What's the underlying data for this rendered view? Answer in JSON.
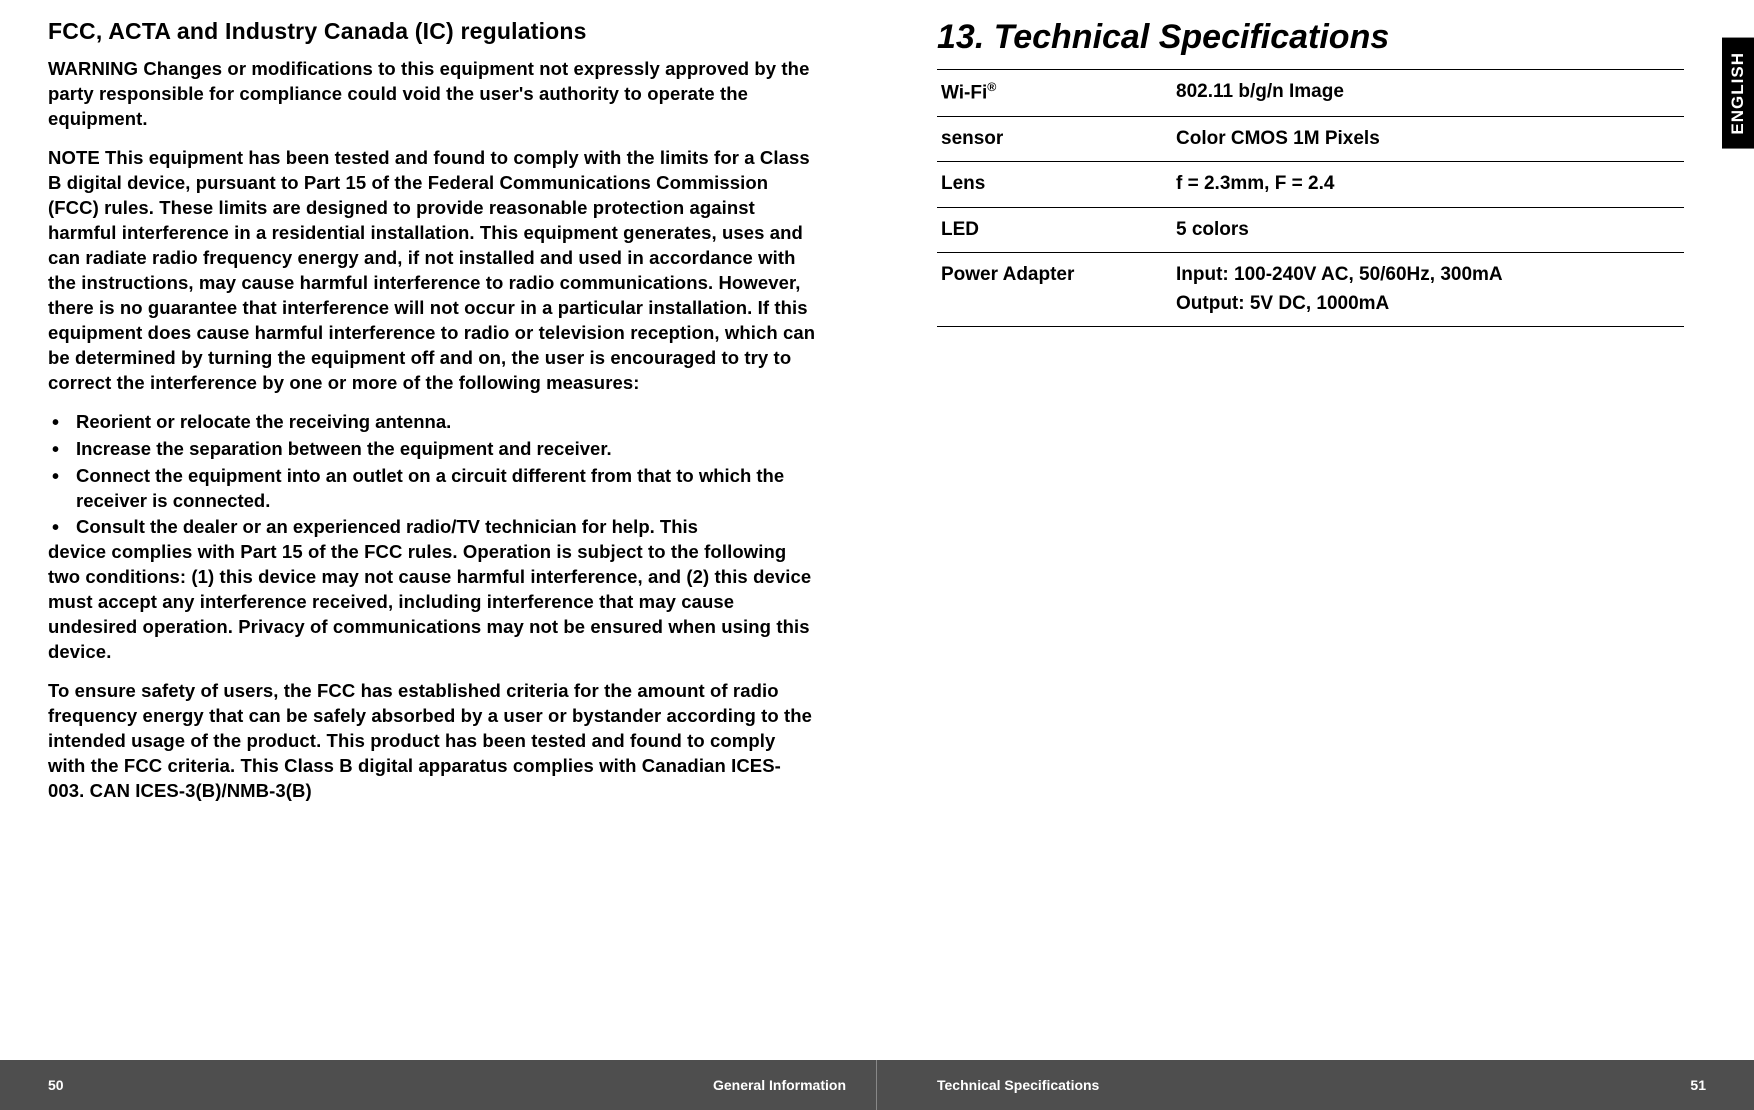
{
  "leftPage": {
    "heading": "FCC, ACTA and Industry Canada (IC) regulations",
    "para1": "WARNING Changes or modifications to this equipment not expressly approved by the party responsible for compliance could void the user's authority to operate the equipment.",
    "para2": "NOTE This equipment has been tested and found to comply with the limits for a Class B digital device, pursuant to Part 15 of the Federal Communications Commission (FCC) rules. These limits are designed to provide reasonable protection against harmful interference in a residential installation. This equipment generates, uses and can radiate radio frequency energy and, if not installed and used in accordance with the instructions, may cause harmful interference to radio communications. However, there is no guarantee that interference will not occur in a particular installation. If this equipment does cause harmful interference to radio or television reception, which can be determined by turning the equipment off and on, the user is encouraged to try to correct the interference by one or more of the following measures:",
    "bullets": [
      "Reorient or relocate the receiving antenna.",
      "Increase the separation between the equipment and receiver.",
      "Connect the equipment into an outlet on a circuit different from that to which the receiver is connected.",
      "Consult the dealer or an experienced radio/TV technician for help. This"
    ],
    "para3": "device complies with Part 15 of the FCC rules. Operation is subject to the following two conditions: (1) this device may not cause harmful interference, and (2) this device must accept any interference received, including interference that may cause undesired operation. Privacy of communications may not be ensured when using this device.",
    "para4": "To ensure safety of users, the FCC has established criteria for the amount of radio frequency energy that can be safely absorbed by a user or bystander according to the intended usage of the product. This product has been tested and found to comply with the FCC criteria. This Class B digital apparatus complies with Canadian ICES-003. CAN ICES-3(B)/NMB-3(B)"
  },
  "rightPage": {
    "sectionTitle": "13. Technical Specifications",
    "specs": [
      {
        "label": "Wi-Fi®",
        "value": "802.11 b/g/n Image"
      },
      {
        "label": "sensor",
        "value": "Color CMOS 1M Pixels"
      },
      {
        "label": "Lens",
        "value": "f = 2.3mm,  F = 2.4"
      },
      {
        "label": "LED",
        "value": "5 colors"
      },
      {
        "label": "Power Adapter",
        "value": "Input: 100-240V AC, 50/60Hz, 300mA\nOutput: 5V DC, 1000mA"
      }
    ],
    "sideTab": "ENGLISH"
  },
  "footer": {
    "leftNum": "50",
    "leftTitle": "General Information",
    "rightTitle": "Technical Specifications",
    "rightNum": "51"
  },
  "colors": {
    "footerBg": "#4e4e4e",
    "tabBg": "#000000",
    "text": "#000000",
    "footerText": "#ffffff",
    "rule": "#000000"
  },
  "typography": {
    "bodyFontSize": 18.5,
    "headingFontSize": 23,
    "sectionTitleFontSize": 34,
    "specFontSize": 19,
    "footerFontSize": 14,
    "fontFamily": "Arial"
  }
}
